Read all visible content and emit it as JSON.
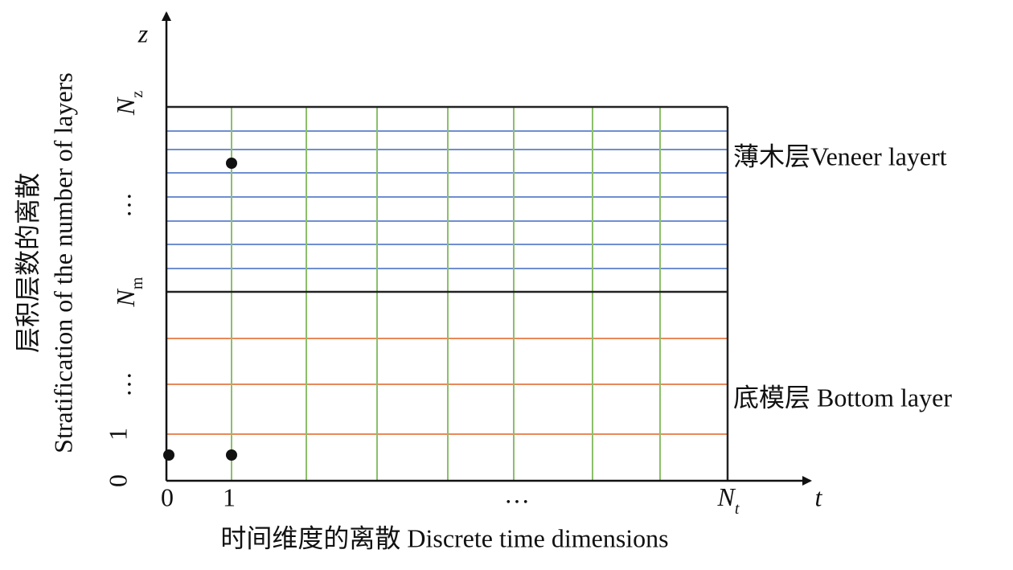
{
  "axes": {
    "x_symbol": "t",
    "y_symbol": "z"
  },
  "x_ticks": [
    "0",
    "1",
    "…",
    {
      "base": "N",
      "sub": "t"
    }
  ],
  "y_ticks": [
    "0",
    "1",
    "…",
    {
      "base": "N",
      "sub": "m"
    },
    "…",
    {
      "base": "N",
      "sub": "z"
    }
  ],
  "regions": {
    "veneer": "薄木层Veneer layert",
    "bottom": "底模层 Bottom layer"
  },
  "x_title": "时间维度的离散 Discrete time dimensions",
  "y_title": {
    "zh": "层积层数的离散",
    "en": "Stratification of the number of layers"
  }
}
